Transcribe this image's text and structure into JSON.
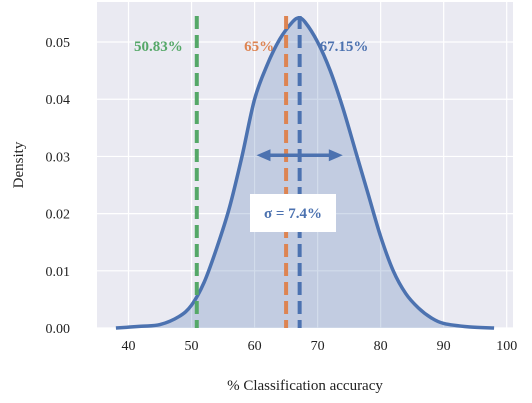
{
  "chart_data": {
    "type": "area",
    "title": "",
    "xlabel": "% Classification accuracy",
    "ylabel": "Density",
    "xlim": [
      35,
      101
    ],
    "ylim": [
      0,
      0.057
    ],
    "x_ticks": [
      40,
      50,
      60,
      70,
      80,
      90,
      100
    ],
    "y_ticks": [
      0.0,
      0.01,
      0.02,
      0.03,
      0.04,
      0.05
    ],
    "grid": true,
    "background_color": "#eaeaf2",
    "series": [
      {
        "kind": "kde",
        "color": "#4c72b0",
        "fill_color": "#4c72b0",
        "fill_opacity": 0.25,
        "points": [
          [
            38,
            0.0
          ],
          [
            42,
            0.0003
          ],
          [
            45,
            0.0006
          ],
          [
            48,
            0.002
          ],
          [
            50,
            0.004
          ],
          [
            52,
            0.008
          ],
          [
            54,
            0.014
          ],
          [
            56,
            0.021
          ],
          [
            58,
            0.03
          ],
          [
            60,
            0.04
          ],
          [
            62,
            0.046
          ],
          [
            64,
            0.0505
          ],
          [
            66,
            0.0535
          ],
          [
            67,
            0.0542
          ],
          [
            68,
            0.0535
          ],
          [
            70,
            0.05
          ],
          [
            72,
            0.045
          ],
          [
            74,
            0.0385
          ],
          [
            76,
            0.031
          ],
          [
            78,
            0.0235
          ],
          [
            80,
            0.016
          ],
          [
            82,
            0.01
          ],
          [
            84,
            0.006
          ],
          [
            86,
            0.0035
          ],
          [
            88,
            0.0018
          ],
          [
            90,
            0.0008
          ],
          [
            94,
            0.0002
          ],
          [
            98,
            0.0
          ]
        ]
      }
    ],
    "vertical_lines": [
      {
        "x": 50.83,
        "label": "50.83%",
        "color": "#55a868"
      },
      {
        "x": 65,
        "label": "65%",
        "color": "#dd8452"
      },
      {
        "x": 67.15,
        "label": "67.15%",
        "color": "#4c72b0"
      }
    ],
    "std_annotation": {
      "text": "σ = 7.4%",
      "x_from": 60.3,
      "x_to": 74.0,
      "y": 0.0302,
      "color": "#4c72b0"
    }
  }
}
